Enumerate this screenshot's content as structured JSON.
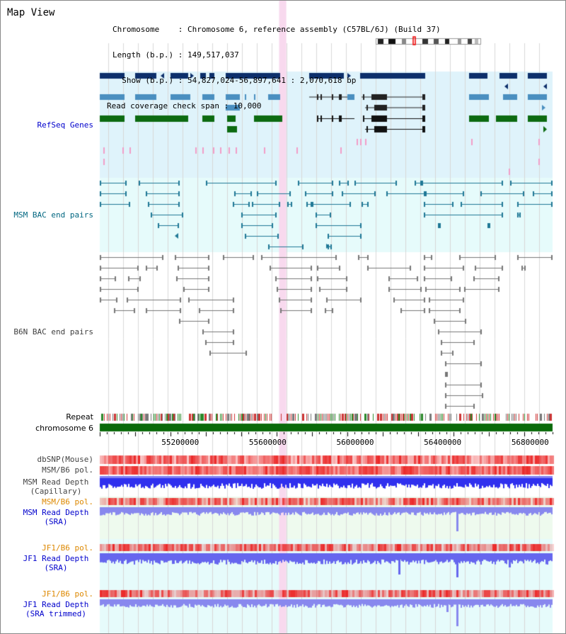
{
  "app": {
    "title": "Map View"
  },
  "info": {
    "chromosome_label": "Chromosome    : Chromosome 6, reference assembly (C57BL/6J) (Build 37)",
    "length_label": "Length (b.p.) : 149,517,037",
    "show_label": "  Show (b.p.) : 54,827,024-56,897,641 : 2,070,618 bp",
    "span_label": "Read coverage check span : 10,000"
  },
  "tracks": {
    "refseq": "RefSeq Genes",
    "msm_bac": "MSM BAC end pairs",
    "b6n_bac": "B6N BAC end pairs",
    "repeat": "Repeat",
    "chromosome": "chromosome 6",
    "dbsnp": "dbSNP(Mouse)",
    "msm_pol_1": "MSM/B6 pol.",
    "msm_depth_cap_1": "MSM Read Depth",
    "msm_depth_cap_2": "(Capillary)",
    "msm_pol_2": "MSM/B6 pol.",
    "msm_depth_sra_1": "MSM Read Depth",
    "msm_depth_sra_2": "(SRA)",
    "jf1_pol_1": "JF1/B6 pol.",
    "jf1_depth_sra_1": "JF1 Read Depth",
    "jf1_depth_sra_2": "(SRA)",
    "jf1_pol_2": "JF1/B6 pol.",
    "jf1_depth_trim_1": "JF1 Read Depth",
    "jf1_depth_trim_2": "(SRA trimmed)"
  },
  "axis": {
    "ticks": [
      {
        "value": 55200000,
        "label": "55200000"
      },
      {
        "value": 55600000,
        "label": "55600000"
      },
      {
        "value": 56000000,
        "label": "56000000"
      },
      {
        "value": 56400000,
        "label": "56400000"
      },
      {
        "value": 56800000,
        "label": "56800000"
      }
    ],
    "range": [
      54827024,
      56897641
    ]
  },
  "highlight": {
    "start": 55647000,
    "end": 55680000
  },
  "colors": {
    "refseq_bg": "#dff3fb",
    "msm_bac_bg": "#e6fbfb",
    "depth_bg": "#eefaee",
    "highlight": "#f8d9ee",
    "gene_dark": "#0d2f6b",
    "gene_mid": "#4a8fc0",
    "gene_green": "#0d6b12",
    "bac_msm": "#1f7896",
    "bac_b6n": "#777777",
    "label_blue": "#0000cc",
    "label_teal": "#006680",
    "label_orange": "#dd8800",
    "depth_blue": "#3030ee",
    "depth_light": "#8888ee",
    "pol_red": "#ee4444"
  }
}
